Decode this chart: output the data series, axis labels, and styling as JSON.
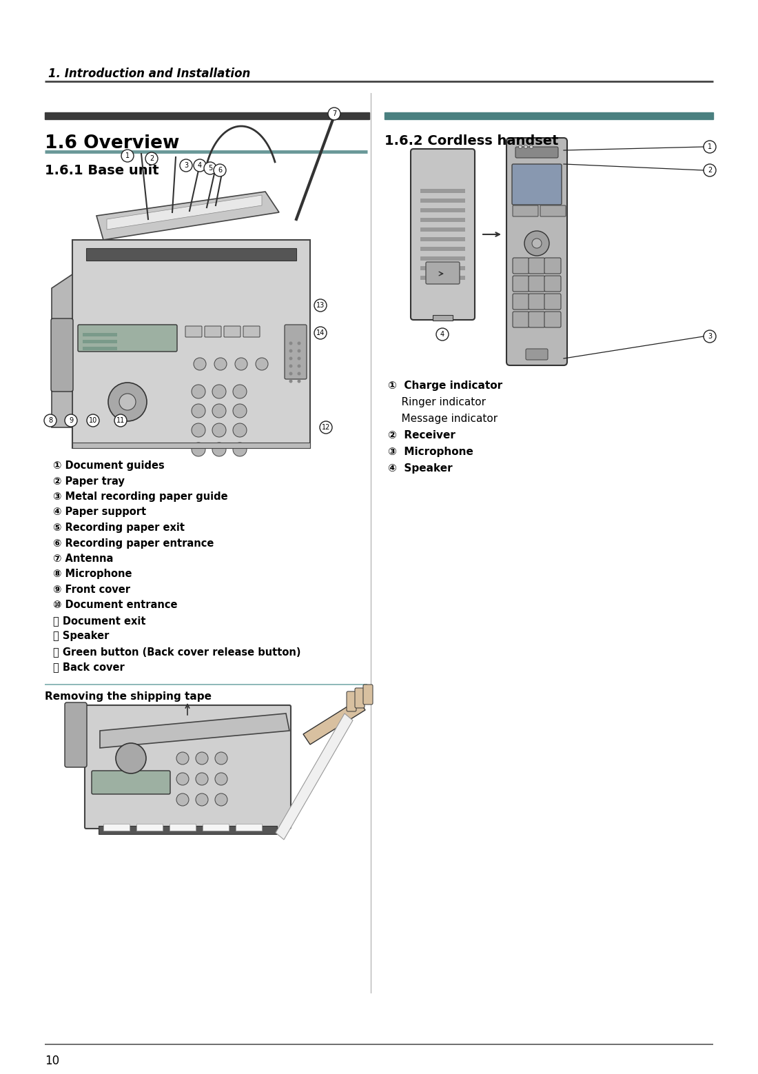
{
  "page_number": "10",
  "header_text": "1. Introduction and Installation",
  "section_title": "1.6 Overview",
  "subsection1": "1.6.1 Base unit",
  "subsection2": "1.6.2 Cordless handset",
  "base_unit_labels": [
    "① Document guides",
    "② Paper tray",
    "③ Metal recording paper guide",
    "④ Paper support",
    "⑤ Recording paper exit",
    "⑥ Recording paper entrance",
    "⑦ Antenna",
    "⑧ Microphone",
    "⑨ Front cover",
    "⑩ Document entrance",
    "⑪ Document exit",
    "⑫ Speaker",
    "⑬ Green button (Back cover release button)",
    "⑭ Back cover"
  ],
  "cordless_label1a": "①  Charge indicator",
  "cordless_label1b": "    Ringer indicator",
  "cordless_label1c": "    Message indicator",
  "cordless_label2": "②  Receiver",
  "cordless_label3": "③  Microphone",
  "cordless_label4": "④  Speaker",
  "shipping_tape_label": "Removing the shipping tape",
  "bg_color": "#ffffff",
  "text_color": "#000000"
}
